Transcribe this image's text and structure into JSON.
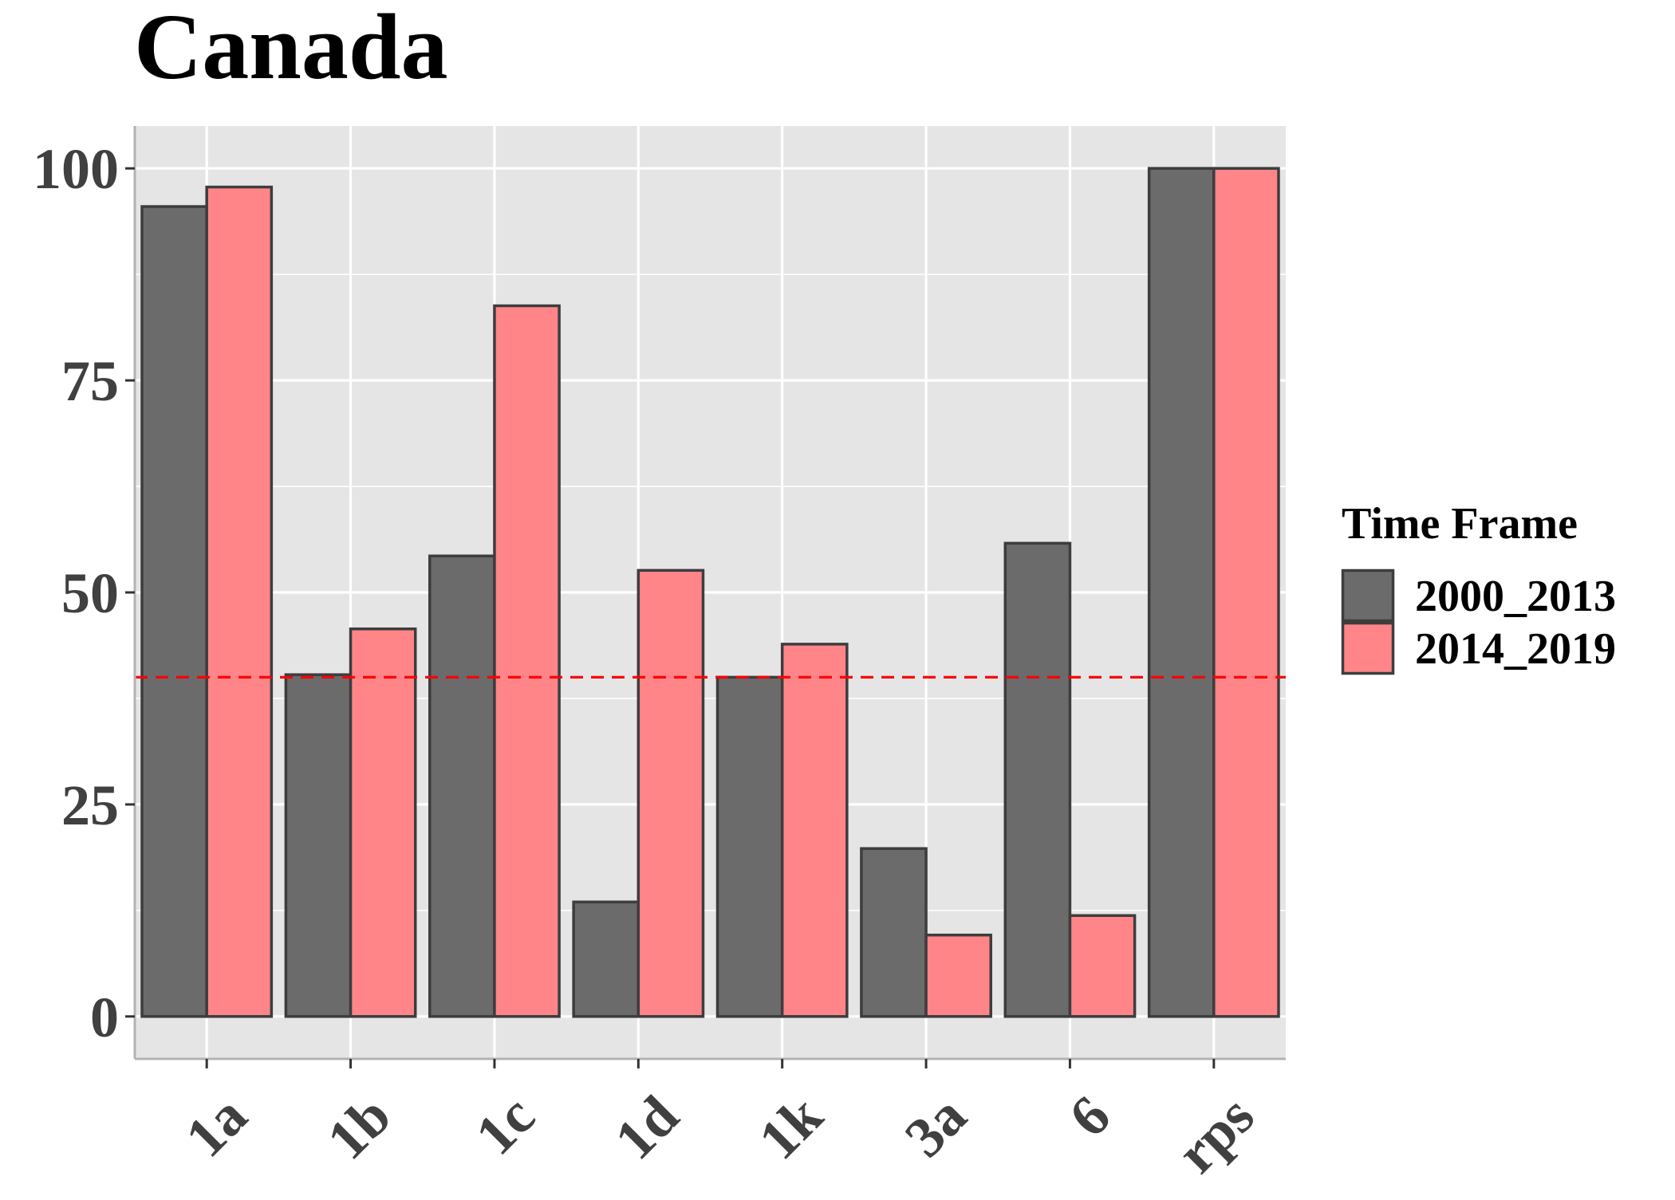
{
  "chart_data": {
    "type": "bar",
    "title": "Canada",
    "xlabel": "",
    "ylabel": "",
    "categories": [
      "1a",
      "1b",
      "1c",
      "1d",
      "1k",
      "3a",
      "6",
      "rps"
    ],
    "series": [
      {
        "name": "2000_2013",
        "color": "#6b6b6b",
        "values": [
          95.5,
          40.3,
          54.3,
          13.5,
          40.0,
          19.8,
          55.8,
          100.0
        ]
      },
      {
        "name": "2014_2019",
        "color": "#ff8588",
        "values": [
          97.8,
          45.7,
          83.8,
          52.6,
          43.9,
          9.6,
          11.9,
          100.0
        ]
      }
    ],
    "ylim": [
      -5,
      105
    ],
    "yticks": [
      0,
      25,
      50,
      75,
      100
    ],
    "reference_line": {
      "y": 40,
      "color": "#ff0000",
      "style": "dashed"
    },
    "legend": {
      "title": "Time Frame",
      "position": "right"
    },
    "grid": true,
    "panel_background": "#e5e5e5",
    "bar_outline": "#3d3d3d"
  }
}
